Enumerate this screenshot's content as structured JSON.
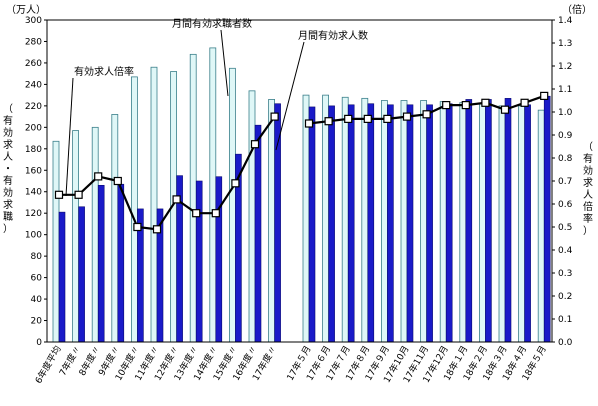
{
  "chart_data": {
    "type": "bar",
    "left_unit": "（万人）",
    "right_unit": "（倍）",
    "left_axis_label": "（有効求人・有効求職）",
    "right_axis_label": "（有効求人倍率）",
    "ylim_left": [
      0,
      300
    ],
    "ylim_right": [
      0,
      1.4
    ],
    "left_ticks": [
      "0",
      "20",
      "40",
      "60",
      "80",
      "100",
      "120",
      "140",
      "160",
      "180",
      "200",
      "220",
      "240",
      "260",
      "280",
      "300"
    ],
    "right_ticks": [
      "0.0",
      "0.1",
      "0.2",
      "0.3",
      "0.4",
      "0.5",
      "0.6",
      "0.7",
      "0.8",
      "0.9",
      "1.0",
      "1.1",
      "1.2",
      "1.3",
      "1.4"
    ],
    "categories": [
      "6年度平均",
      "7年度〃",
      "8年度〃",
      "9年度〃",
      "10年度〃",
      "11年度〃",
      "12年度〃",
      "13年度〃",
      "14年度〃",
      "15年度〃",
      "16年度〃",
      "17年度〃",
      "17年５月",
      "17年６月",
      "17年７月",
      "17年８月",
      "17年９月",
      "17年10月",
      "17年11月",
      "17年12月",
      "18年１月",
      "18年２月",
      "18年３月",
      "18年４月",
      "18年５月"
    ],
    "series": [
      {
        "name": "月間有効求職者数",
        "kind": "bar",
        "values": [
          187,
          197,
          200,
          212,
          247,
          256,
          252,
          268,
          274,
          255,
          234,
          226,
          230,
          230,
          228,
          227,
          225,
          225,
          225,
          224,
          223,
          222,
          220,
          220,
          216
        ]
      },
      {
        "name": "月間有効求人数",
        "kind": "bar",
        "values": [
          121,
          126,
          146,
          147,
          124,
          124,
          155,
          150,
          154,
          175,
          202,
          222,
          219,
          220,
          221,
          222,
          221,
          221,
          221,
          222,
          226,
          226,
          227,
          221,
          229
        ]
      },
      {
        "name": "有効求人倍率",
        "kind": "line",
        "axis": "right",
        "values": [
          0.64,
          0.64,
          0.72,
          0.7,
          0.5,
          0.49,
          0.62,
          0.56,
          0.56,
          0.69,
          0.86,
          0.98,
          0.95,
          0.96,
          0.97,
          0.97,
          0.97,
          0.98,
          0.99,
          1.03,
          1.03,
          1.04,
          1.01,
          1.04,
          1.07
        ]
      }
    ]
  }
}
